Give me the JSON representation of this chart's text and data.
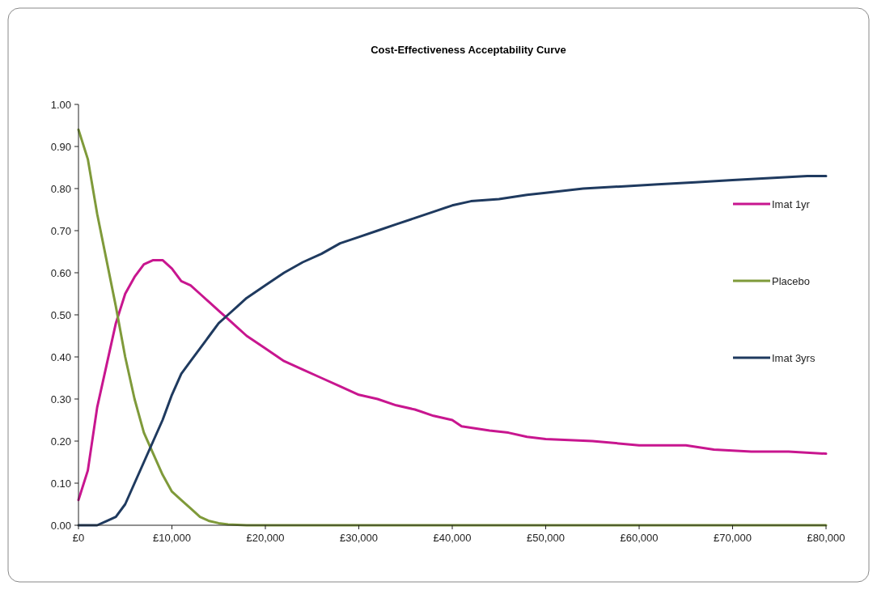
{
  "chart_data": {
    "type": "line",
    "title": "Cost-Effectiveness  Acceptability Curve",
    "xlim": [
      0,
      80000
    ],
    "ylim": [
      0,
      1
    ],
    "xticks": [
      {
        "value": 0,
        "label": "£0"
      },
      {
        "value": 10000,
        "label": "£10,000"
      },
      {
        "value": 20000,
        "label": "£20,000"
      },
      {
        "value": 30000,
        "label": "£30,000"
      },
      {
        "value": 40000,
        "label": "£40,000"
      },
      {
        "value": 50000,
        "label": "£50,000"
      },
      {
        "value": 60000,
        "label": "£60,000"
      },
      {
        "value": 70000,
        "label": "£70,000"
      },
      {
        "value": 80000,
        "label": "£80,000"
      }
    ],
    "yticks": [
      {
        "value": 0,
        "label": "0.00"
      },
      {
        "value": 0.1,
        "label": "0.10"
      },
      {
        "value": 0.2,
        "label": "0.20"
      },
      {
        "value": 0.3,
        "label": "0.30"
      },
      {
        "value": 0.4,
        "label": "0.40"
      },
      {
        "value": 0.5,
        "label": "0.50"
      },
      {
        "value": 0.6,
        "label": "0.60"
      },
      {
        "value": 0.7,
        "label": "0.70"
      },
      {
        "value": 0.8,
        "label": "0.80"
      },
      {
        "value": 0.9,
        "label": "0.90"
      },
      {
        "value": 1,
        "label": "1.00"
      }
    ],
    "grid": false,
    "legend": "right",
    "marker": "none",
    "line_style": "solid",
    "series": [
      {
        "name": "Imat 1yr",
        "color": "#c8168f",
        "x": [
          0,
          1000,
          2000,
          3000,
          4000,
          5000,
          6000,
          7000,
          8000,
          9000,
          10000,
          11000,
          12000,
          13000,
          14000,
          15000,
          16000,
          17000,
          18000,
          20000,
          22000,
          24000,
          26000,
          28000,
          30000,
          32000,
          34000,
          36000,
          38000,
          40000,
          41000,
          44000,
          46000,
          48000,
          50000,
          55000,
          60000,
          65000,
          68000,
          72000,
          76000,
          80000
        ],
        "values": [
          0.06,
          0.13,
          0.28,
          0.38,
          0.48,
          0.55,
          0.59,
          0.62,
          0.63,
          0.63,
          0.61,
          0.58,
          0.57,
          0.55,
          0.53,
          0.51,
          0.49,
          0.47,
          0.45,
          0.42,
          0.39,
          0.37,
          0.35,
          0.33,
          0.31,
          0.3,
          0.285,
          0.275,
          0.26,
          0.25,
          0.235,
          0.225,
          0.22,
          0.21,
          0.205,
          0.2,
          0.19,
          0.19,
          0.18,
          0.175,
          0.175,
          0.17
        ]
      },
      {
        "name": "Placebo",
        "color": "#7f9a3a",
        "x": [
          0,
          1000,
          2000,
          3000,
          4000,
          5000,
          6000,
          7000,
          8000,
          9000,
          10000,
          11000,
          12000,
          13000,
          14000,
          15000,
          16000,
          18000,
          80000
        ],
        "values": [
          0.94,
          0.87,
          0.74,
          0.63,
          0.52,
          0.4,
          0.3,
          0.22,
          0.17,
          0.12,
          0.08,
          0.06,
          0.04,
          0.02,
          0.01,
          0.005,
          0.002,
          0,
          0
        ]
      },
      {
        "name": "Imat 3yrs",
        "color": "#1f3a5f",
        "x": [
          0,
          2000,
          3000,
          4000,
          5000,
          6000,
          7000,
          8000,
          9000,
          10000,
          11000,
          12000,
          13000,
          14000,
          15000,
          16000,
          17000,
          18000,
          20000,
          22000,
          24000,
          26000,
          28000,
          30000,
          32000,
          34000,
          36000,
          38000,
          40000,
          42000,
          45000,
          48000,
          50000,
          54000,
          58000,
          62000,
          66000,
          70000,
          74000,
          78000,
          80000
        ],
        "values": [
          0,
          0,
          0.01,
          0.02,
          0.05,
          0.1,
          0.15,
          0.2,
          0.25,
          0.31,
          0.36,
          0.39,
          0.42,
          0.45,
          0.48,
          0.5,
          0.52,
          0.54,
          0.57,
          0.6,
          0.625,
          0.645,
          0.67,
          0.685,
          0.7,
          0.715,
          0.73,
          0.745,
          0.76,
          0.77,
          0.775,
          0.785,
          0.79,
          0.8,
          0.805,
          0.81,
          0.815,
          0.82,
          0.825,
          0.83,
          0.83
        ]
      }
    ]
  }
}
